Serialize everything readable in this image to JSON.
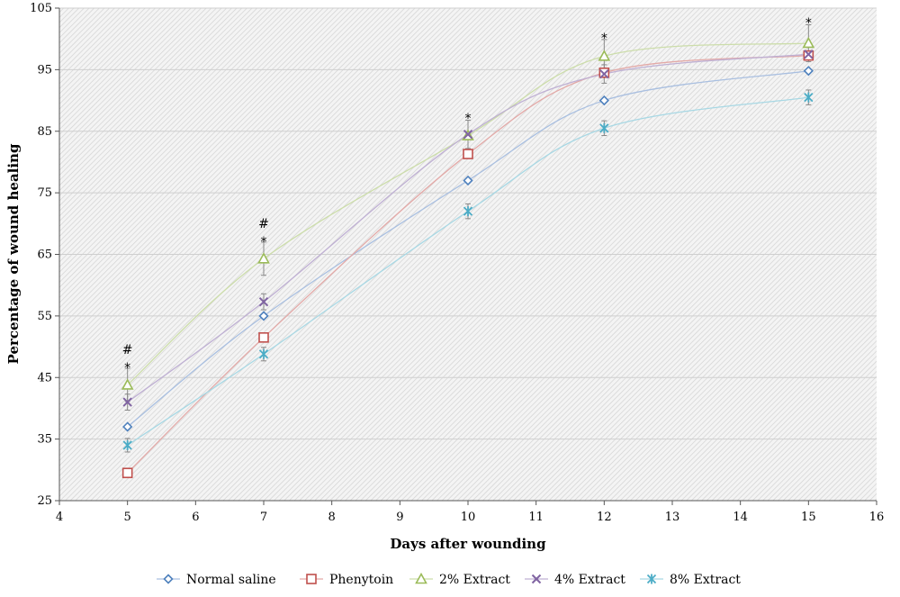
{
  "chart_data": {
    "type": "line",
    "title": "",
    "xlabel": "Days after wounding",
    "ylabel": "Percentage of wound healing",
    "xlim": [
      4,
      16
    ],
    "ylim": [
      25,
      105
    ],
    "xticks": [
      4,
      5,
      6,
      7,
      8,
      9,
      10,
      11,
      12,
      13,
      14,
      15,
      16
    ],
    "yticks": [
      25,
      35,
      45,
      55,
      65,
      75,
      85,
      95,
      105
    ],
    "legend_position": "bottom",
    "background": "hatched",
    "series": [
      {
        "name": "Normal saline",
        "marker": "diamond",
        "color": "#4F81BD",
        "line_color": "#A9BFE0",
        "x": [
          5,
          7,
          10,
          12,
          15
        ],
        "y": [
          37,
          55,
          77,
          90,
          94.8
        ],
        "err": [
          0,
          0,
          0,
          0,
          0
        ]
      },
      {
        "name": "Phenytoin",
        "marker": "square",
        "color": "#C0504D",
        "line_color": "#E3A9A7",
        "x": [
          5,
          7,
          10,
          12,
          15
        ],
        "y": [
          29.5,
          51.5,
          81.3,
          94.5,
          97.3
        ],
        "err": [
          0,
          0,
          0,
          0,
          0
        ]
      },
      {
        "name": "2% Extract",
        "marker": "triangle",
        "color": "#9BBB59",
        "line_color": "#CCDDAA",
        "x": [
          5,
          7,
          10,
          12,
          15
        ],
        "y": [
          43.8,
          64.3,
          84.3,
          97.2,
          99.3
        ],
        "err": [
          2.7,
          2.7,
          0,
          2.7,
          3
        ]
      },
      {
        "name": "4% Extract",
        "marker": "x",
        "color": "#8064A2",
        "line_color": "#BFB0D3",
        "x": [
          5,
          7,
          10,
          12,
          15
        ],
        "y": [
          41,
          57.3,
          84.5,
          94.3,
          97.5
        ],
        "err": [
          1.3,
          1.3,
          2.3,
          1.5,
          0
        ]
      },
      {
        "name": "8% Extract",
        "marker": "star",
        "color": "#4BACC6",
        "line_color": "#A8D8E4",
        "x": [
          5,
          7,
          10,
          12,
          15
        ],
        "y": [
          34,
          48.8,
          72,
          85.5,
          90.5
        ],
        "err": [
          1.1,
          1.1,
          1.2,
          1.2,
          1.2
        ]
      }
    ],
    "annotations": [
      {
        "x": 5,
        "y": 46.5,
        "lines": [
          "#",
          "*"
        ]
      },
      {
        "x": 7,
        "y": 67,
        "lines": [
          "#",
          "*"
        ]
      },
      {
        "x": 10,
        "y": 87,
        "lines": [
          "*"
        ]
      },
      {
        "x": 12,
        "y": 100,
        "lines": [
          "*"
        ]
      },
      {
        "x": 15,
        "y": 102.5,
        "lines": [
          "*"
        ]
      }
    ]
  }
}
